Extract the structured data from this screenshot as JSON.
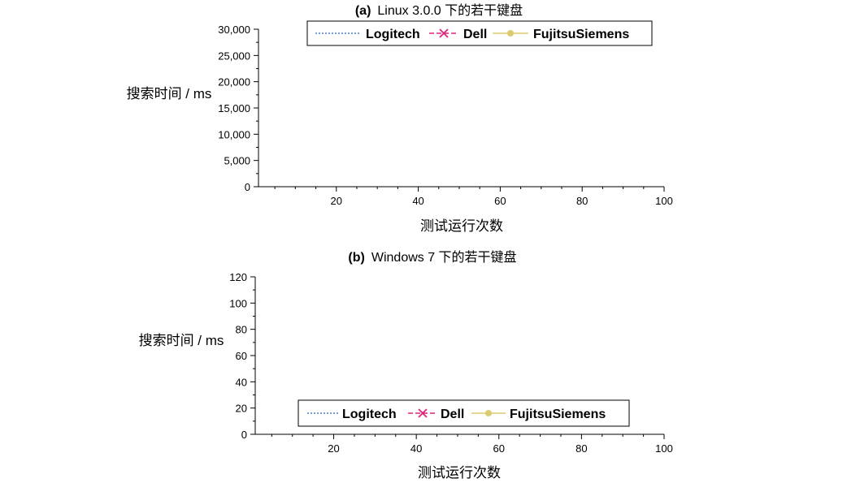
{
  "chart_data": [
    {
      "type": "line",
      "title_tag": "(a)",
      "title_text": "Linux 3.0.0  下的若干键盘",
      "xlabel": "测试运行次数",
      "ylabel": "搜索时间  / ms",
      "xlim": [
        1,
        100
      ],
      "ylim": [
        0,
        30000
      ],
      "xticks": [
        20,
        40,
        60,
        80,
        100
      ],
      "yticks": [
        0,
        5000,
        10000,
        15000,
        20000,
        25000,
        30000
      ],
      "xtick_labels": [
        "20",
        "40",
        "60",
        "80",
        "100"
      ],
      "ytick_labels": [
        "0",
        "5,000",
        "10,000",
        "15,000",
        "20,000",
        "25,000",
        "30,000"
      ],
      "legend_position": "top",
      "grid": false,
      "series": [
        {
          "name": "Logitech",
          "color": "#4a7fbf",
          "style": "dotted",
          "marker": "none"
        },
        {
          "name": "Dell",
          "color": "#e0247a",
          "style": "dashed",
          "marker": "x"
        },
        {
          "name": "FujitsuSiemens",
          "color": "#dccb6e",
          "style": "solid",
          "marker": "circle"
        }
      ]
    },
    {
      "type": "line",
      "title_tag": "(b)",
      "title_text": "Windows 7  下的若干键盘",
      "xlabel": "测试运行次数",
      "ylabel": "搜索时间  / ms",
      "xlim": [
        1,
        100
      ],
      "ylim": [
        0,
        120
      ],
      "xticks": [
        20,
        40,
        60,
        80,
        100
      ],
      "yticks": [
        0,
        20,
        40,
        60,
        80,
        100,
        120
      ],
      "xtick_labels": [
        "20",
        "40",
        "60",
        "80",
        "100"
      ],
      "ytick_labels": [
        "0",
        "20",
        "40",
        "60",
        "80",
        "100",
        "120"
      ],
      "legend_position": "bottom",
      "grid": false,
      "series": [
        {
          "name": "Logitech",
          "color": "#4a7fbf",
          "style": "dotted",
          "marker": "none"
        },
        {
          "name": "Dell",
          "color": "#e0247a",
          "style": "dashed",
          "marker": "x"
        },
        {
          "name": "FujitsuSiemens",
          "color": "#dccb6e",
          "style": "solid",
          "marker": "circle"
        }
      ]
    }
  ]
}
